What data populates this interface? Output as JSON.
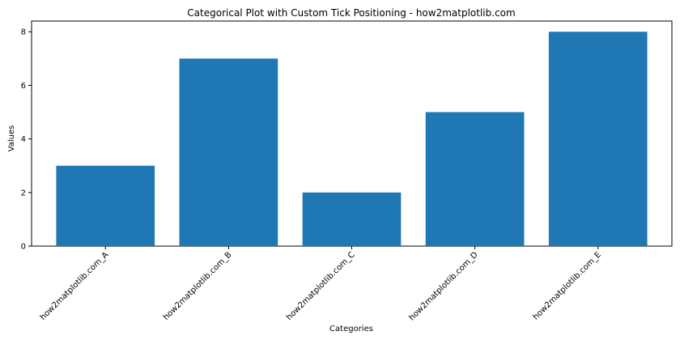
{
  "chart_data": {
    "type": "bar",
    "title": "Categorical Plot with Custom Tick Positioning - how2matplotlib.com",
    "xlabel": "Categories",
    "ylabel": "Values",
    "categories": [
      "how2matplotlib.com_A",
      "how2matplotlib.com_B",
      "how2matplotlib.com_C",
      "how2matplotlib.com_D",
      "how2matplotlib.com_E"
    ],
    "values": [
      3,
      7,
      2,
      5,
      8
    ],
    "ylim": [
      0,
      8.4
    ],
    "yticks": [
      "0",
      "2",
      "4",
      "6",
      "8"
    ],
    "grid": false,
    "bar_color": "#1f77b4",
    "x_tick_rotation_deg": 45
  }
}
